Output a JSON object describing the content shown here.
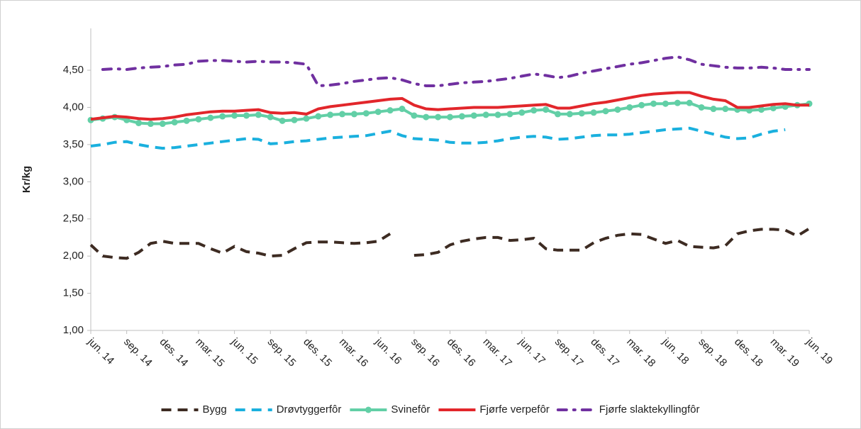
{
  "chart_data": {
    "type": "line",
    "y_label": "Kr/kg",
    "categories": [
      "jun. 14",
      null,
      null,
      "sep. 14",
      null,
      null,
      "des. 14",
      null,
      null,
      "mar. 15",
      null,
      null,
      "jun. 15",
      null,
      null,
      "sep. 15",
      null,
      null,
      "des. 15",
      null,
      null,
      "mar. 16",
      null,
      null,
      "jun. 16",
      null,
      null,
      "sep. 16",
      null,
      null,
      "des. 16",
      null,
      null,
      "mar. 17",
      null,
      null,
      "jun. 17",
      null,
      null,
      "sep. 17",
      null,
      null,
      "des. 17",
      null,
      null,
      "mar. 18",
      null,
      null,
      "jun. 18",
      null,
      null,
      "sep. 18",
      null,
      null,
      "des. 18",
      null,
      null,
      "mar. 19",
      null,
      null,
      "jun. 19"
    ],
    "ylim": [
      1,
      5
    ],
    "yticks": [
      {
        "value": 1,
        "label": "1,00"
      },
      {
        "value": 1.5,
        "label": "1,50"
      },
      {
        "value": 2,
        "label": "2,00"
      },
      {
        "value": 2.5,
        "label": "2,50"
      },
      {
        "value": 3,
        "label": "3,00"
      },
      {
        "value": 3.5,
        "label": "3,50"
      },
      {
        "value": 4,
        "label": "4,00"
      },
      {
        "value": 4.5,
        "label": "4,50"
      }
    ],
    "grid": false,
    "legend": "bottom",
    "series": [
      {
        "name": "Bygg",
        "color": "#3d2b22",
        "line_style": "dashed",
        "values": [
          2.15,
          2.0,
          1.98,
          1.97,
          2.05,
          2.17,
          2.2,
          2.17,
          2.17,
          2.17,
          2.1,
          2.04,
          2.13,
          2.06,
          2.04,
          2.0,
          2.01,
          2.1,
          2.18,
          2.19,
          2.19,
          2.18,
          2.17,
          2.18,
          2.2,
          2.3,
          null,
          2.01,
          2.02,
          2.05,
          2.15,
          2.2,
          2.23,
          2.25,
          2.25,
          2.21,
          2.22,
          2.24,
          2.1,
          2.08,
          2.08,
          2.08,
          2.18,
          2.24,
          2.28,
          2.3,
          2.29,
          2.23,
          2.17,
          2.21,
          2.13,
          2.12,
          2.11,
          2.14,
          2.3,
          2.34,
          2.36,
          2.36,
          2.35,
          2.27,
          2.37
        ]
      },
      {
        "name": "Drøvtyggerfôr",
        "color": "#1ab0de",
        "line_style": "dashed",
        "values": [
          3.48,
          3.5,
          3.53,
          3.54,
          3.5,
          3.47,
          3.45,
          3.46,
          3.48,
          3.5,
          3.52,
          3.54,
          3.56,
          3.58,
          3.57,
          3.51,
          3.52,
          3.54,
          3.55,
          3.57,
          3.59,
          3.6,
          3.61,
          3.62,
          3.65,
          3.68,
          3.62,
          3.58,
          3.57,
          3.56,
          3.53,
          3.52,
          3.52,
          3.53,
          3.55,
          3.58,
          3.6,
          3.61,
          3.6,
          3.57,
          3.58,
          3.6,
          3.62,
          3.63,
          3.63,
          3.64,
          3.66,
          3.68,
          3.7,
          3.71,
          3.72,
          3.68,
          3.64,
          3.6,
          3.58,
          3.59,
          3.64,
          3.68,
          3.7,
          null,
          null
        ]
      },
      {
        "name": "Svinefôr",
        "color": "#62cfa6",
        "line_style": "solid",
        "markers": true,
        "values": [
          3.83,
          3.85,
          3.87,
          3.83,
          3.79,
          3.78,
          3.78,
          3.8,
          3.82,
          3.84,
          3.86,
          3.88,
          3.89,
          3.89,
          3.9,
          3.87,
          3.82,
          3.83,
          3.85,
          3.88,
          3.9,
          3.91,
          3.91,
          3.92,
          3.94,
          3.96,
          3.98,
          3.89,
          3.87,
          3.87,
          3.87,
          3.88,
          3.89,
          3.9,
          3.9,
          3.91,
          3.93,
          3.96,
          3.97,
          3.91,
          3.91,
          3.92,
          3.93,
          3.95,
          3.97,
          4.0,
          4.03,
          4.05,
          4.05,
          4.06,
          4.06,
          4.0,
          3.98,
          3.98,
          3.97,
          3.96,
          3.97,
          3.99,
          4.01,
          4.03,
          4.05
        ]
      },
      {
        "name": "Fjørfe verpefôr",
        "color": "#e2262b",
        "line_style": "solid",
        "values": [
          3.84,
          3.86,
          3.88,
          3.87,
          3.85,
          3.84,
          3.85,
          3.87,
          3.9,
          3.92,
          3.94,
          3.95,
          3.95,
          3.96,
          3.97,
          3.93,
          3.92,
          3.93,
          3.91,
          3.98,
          4.01,
          4.03,
          4.05,
          4.07,
          4.09,
          4.11,
          4.12,
          4.03,
          3.98,
          3.97,
          3.98,
          3.99,
          4.0,
          4.0,
          4.0,
          4.01,
          4.02,
          4.03,
          4.04,
          3.99,
          3.99,
          4.02,
          4.05,
          4.07,
          4.1,
          4.13,
          4.16,
          4.18,
          4.19,
          4.2,
          4.2,
          4.15,
          4.11,
          4.09,
          4.0,
          4.0,
          4.02,
          4.04,
          4.05,
          4.03,
          4.03
        ]
      },
      {
        "name": "Fjørfe slaktekyllingfôr",
        "color": "#7030a0",
        "line_style": "dash-dot",
        "values": [
          null,
          4.51,
          4.52,
          4.51,
          4.53,
          4.54,
          4.55,
          4.57,
          4.58,
          4.62,
          4.63,
          4.63,
          4.62,
          4.61,
          4.62,
          4.61,
          4.61,
          4.6,
          4.58,
          4.29,
          4.3,
          4.32,
          4.35,
          4.37,
          4.39,
          4.4,
          4.37,
          4.32,
          4.29,
          4.29,
          4.31,
          4.33,
          4.34,
          4.35,
          4.37,
          4.39,
          4.42,
          4.45,
          4.43,
          4.4,
          4.42,
          4.46,
          4.49,
          4.52,
          4.55,
          4.58,
          4.6,
          4.63,
          4.66,
          4.68,
          4.64,
          4.58,
          4.56,
          4.54,
          4.53,
          4.53,
          4.54,
          4.53,
          4.51,
          4.51,
          4.51
        ]
      }
    ]
  }
}
